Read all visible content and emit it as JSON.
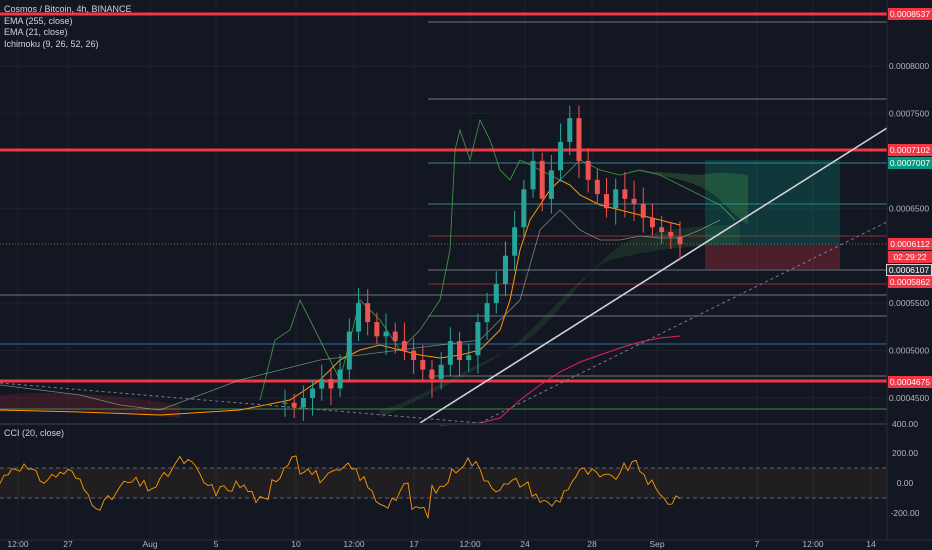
{
  "legend": {
    "title": "Cosmos / Bitcoin, 4h, BINANCE",
    "ema1": "EMA (255, close)",
    "ema2": "EMA (21, close)",
    "ichimoku": "Ichimoku (9, 26, 52, 26)"
  },
  "cci_legend": "CCI (20, close)",
  "price_tags": {
    "top_resistance": "0.0008537",
    "resistance_mid": "0.0007102",
    "target": "0.0007007",
    "last_price": "0.0006112",
    "countdown": "02:29:22",
    "current": "0.0006107",
    "stop": "0.0005862",
    "support": "0.0004675"
  },
  "colors": {
    "background": "#131722",
    "up": "#26a69a",
    "down": "#ef5350",
    "ema255": "#e91e63",
    "ema21": "#ff9800",
    "ichimoku_span": "#4caf50",
    "resistance": "#f23645",
    "trendline": "#d1d4dc",
    "cci": "#ff9800"
  },
  "chart_data": {
    "type": "candlestick",
    "symbol": "Cosmos / Bitcoin",
    "timeframe": "4h",
    "exchange": "BINANCE",
    "ylim": [
      0.00041,
      0.00087
    ],
    "y_ticks": [
      "0.0008000",
      "0.0007500",
      "0.0006500",
      "0.0005500",
      "0.0005000",
      "0.0004500"
    ],
    "x_ticks": [
      "12:00",
      "27",
      "Aug",
      "5",
      "10",
      "12:00",
      "17",
      "12:00",
      "24",
      "28",
      "Sep",
      "7",
      "12:00",
      "14"
    ],
    "horizontal_levels_red": [
      0.0008537,
      0.0007102,
      0.0004675
    ],
    "close_path": [
      0.000445,
      0.00044,
      0.00045,
      0.00046,
      0.00047,
      0.00046,
      0.00048,
      0.00052,
      0.00055,
      0.00053,
      0.000515,
      0.00052,
      0.00051,
      0.0005,
      0.00049,
      0.00048,
      0.00047,
      0.000485,
      0.00051,
      0.00049,
      0.000495,
      0.00053,
      0.00055,
      0.00057,
      0.0006,
      0.00063,
      0.00067,
      0.0007,
      0.00066,
      0.00069,
      0.00072,
      0.000745,
      0.0007,
      0.00068,
      0.000665,
      0.00065,
      0.00067,
      0.00066,
      0.000655,
      0.00064,
      0.00063,
      0.000625,
      0.00062,
      0.000612
    ],
    "cci": {
      "ylim": [
        -300,
        400
      ],
      "ticks": [
        "400.00",
        "200.00",
        "0.00",
        "-200.00"
      ],
      "bands": [
        100,
        -100
      ]
    }
  }
}
